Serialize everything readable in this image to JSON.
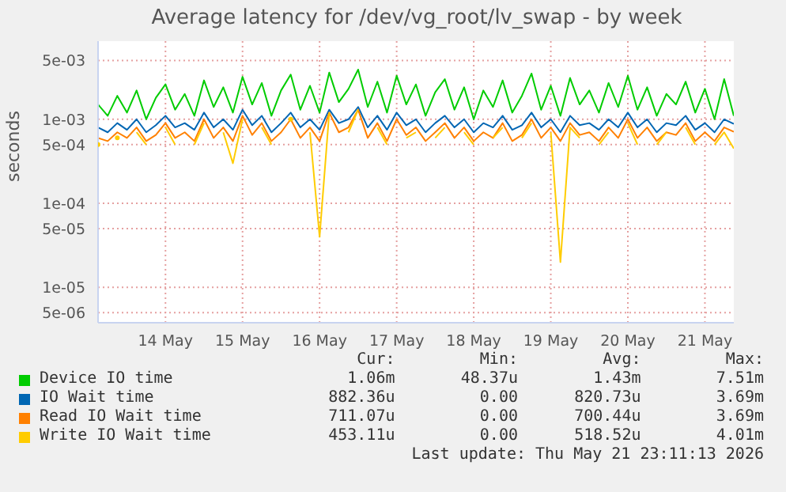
{
  "chart_data": {
    "type": "line",
    "title": "Average latency for /dev/vg_root/lv_swap - by week",
    "ylabel": "seconds",
    "log": "y",
    "grid": true,
    "legend": "bottom",
    "marker": "none",
    "line_style": "solid",
    "xlim": [
      "2026-05-13T15:00",
      "2026-05-21T21:00"
    ],
    "xticks": [
      {
        "value": "2026-05-14T12:00",
        "label": "14 May"
      },
      {
        "value": "2026-05-15T12:00",
        "label": "15 May"
      },
      {
        "value": "2026-05-16T12:00",
        "label": "16 May"
      },
      {
        "value": "2026-05-17T12:00",
        "label": "17 May"
      },
      {
        "value": "2026-05-18T12:00",
        "label": "18 May"
      },
      {
        "value": "2026-05-19T12:00",
        "label": "19 May"
      },
      {
        "value": "2026-05-20T12:00",
        "label": "20 May"
      },
      {
        "value": "2026-05-21T12:00",
        "label": "21 May"
      }
    ],
    "ylim": [
      3.8e-06,
      0.0085
    ],
    "yticks": [
      {
        "value": 5e-06,
        "label": "5e-06"
      },
      {
        "value": 1e-05,
        "label": "1e-05"
      },
      {
        "value": 5e-05,
        "label": "5e-05"
      },
      {
        "value": 0.0001,
        "label": "1e-04"
      },
      {
        "value": 0.0005,
        "label": "5e-04"
      },
      {
        "value": 0.001,
        "label": "1e-03"
      },
      {
        "value": 0.005,
        "label": "5e-03"
      }
    ],
    "x": [
      "2026-05-13T15:00",
      "2026-05-13T18:00",
      "2026-05-13T21:00",
      "2026-05-14T00:00",
      "2026-05-14T03:00",
      "2026-05-14T06:00",
      "2026-05-14T09:00",
      "2026-05-14T12:00",
      "2026-05-14T15:00",
      "2026-05-14T18:00",
      "2026-05-14T21:00",
      "2026-05-15T00:00",
      "2026-05-15T03:00",
      "2026-05-15T06:00",
      "2026-05-15T09:00",
      "2026-05-15T12:00",
      "2026-05-15T15:00",
      "2026-05-15T18:00",
      "2026-05-15T21:00",
      "2026-05-16T00:00",
      "2026-05-16T03:00",
      "2026-05-16T06:00",
      "2026-05-16T09:00",
      "2026-05-16T12:00",
      "2026-05-16T15:00",
      "2026-05-16T18:00",
      "2026-05-16T21:00",
      "2026-05-17T00:00",
      "2026-05-17T03:00",
      "2026-05-17T06:00",
      "2026-05-17T09:00",
      "2026-05-17T12:00",
      "2026-05-17T15:00",
      "2026-05-17T18:00",
      "2026-05-17T21:00",
      "2026-05-18T00:00",
      "2026-05-18T03:00",
      "2026-05-18T06:00",
      "2026-05-18T09:00",
      "2026-05-18T12:00",
      "2026-05-18T15:00",
      "2026-05-18T18:00",
      "2026-05-18T21:00",
      "2026-05-19T00:00",
      "2026-05-19T03:00",
      "2026-05-19T06:00",
      "2026-05-19T09:00",
      "2026-05-19T12:00",
      "2026-05-19T15:00",
      "2026-05-19T18:00",
      "2026-05-19T21:00",
      "2026-05-20T00:00",
      "2026-05-20T03:00",
      "2026-05-20T06:00",
      "2026-05-20T09:00",
      "2026-05-20T12:00",
      "2026-05-20T15:00",
      "2026-05-20T18:00",
      "2026-05-20T21:00",
      "2026-05-21T00:00",
      "2026-05-21T03:00",
      "2026-05-21T06:00",
      "2026-05-21T09:00",
      "2026-05-21T12:00",
      "2026-05-21T15:00",
      "2026-05-21T18:00",
      "2026-05-21T21:00"
    ],
    "series": [
      {
        "name": "Device IO time",
        "color": "#00cc00",
        "values": [
          0.0015,
          0.0011,
          0.0019,
          0.0012,
          0.0022,
          0.001,
          0.0018,
          0.0026,
          0.0013,
          0.002,
          0.0011,
          0.0029,
          0.0014,
          0.0024,
          0.0012,
          0.0032,
          0.0015,
          0.0027,
          0.0011,
          0.0022,
          0.0034,
          0.0013,
          0.0025,
          0.0012,
          0.0036,
          0.0016,
          0.0023,
          0.0039,
          0.0014,
          0.0028,
          0.0012,
          0.0033,
          0.0015,
          0.0026,
          0.0011,
          0.0021,
          0.003,
          0.0013,
          0.0024,
          0.001,
          0.0022,
          0.0014,
          0.0029,
          0.0012,
          0.0019,
          0.0035,
          0.0013,
          0.0025,
          0.0011,
          0.0031,
          0.0015,
          0.0022,
          0.0012,
          0.0027,
          0.0014,
          0.0033,
          0.0013,
          0.0024,
          0.0011,
          0.002,
          0.0015,
          0.0028,
          0.0012,
          0.0023,
          0.001,
          0.003,
          0.0011
        ]
      },
      {
        "name": "IO Wait time",
        "color": "#0066b3",
        "values": [
          0.0008,
          0.0007,
          0.0009,
          0.00075,
          0.001,
          0.0007,
          0.00085,
          0.0011,
          0.0008,
          0.0009,
          0.00075,
          0.0012,
          0.0008,
          0.001,
          0.00075,
          0.0013,
          0.00085,
          0.0011,
          0.0007,
          0.0009,
          0.0012,
          0.0008,
          0.001,
          0.00075,
          0.0013,
          0.0009,
          0.001,
          0.0014,
          0.0008,
          0.0011,
          0.00075,
          0.0012,
          0.00085,
          0.001,
          0.0007,
          0.0009,
          0.0011,
          0.0008,
          0.001,
          0.0007,
          0.0009,
          0.0008,
          0.0011,
          0.00075,
          0.00085,
          0.0012,
          0.0008,
          0.001,
          0.0007,
          0.0011,
          0.00085,
          0.0009,
          0.00075,
          0.001,
          0.0008,
          0.0012,
          0.0008,
          0.001,
          0.0007,
          0.0009,
          0.00085,
          0.0011,
          0.00075,
          0.0009,
          0.0007,
          0.001,
          0.00088
        ]
      },
      {
        "name": "Read IO Wait time",
        "color": "#ff8000",
        "values": [
          0.0006,
          0.00055,
          0.0007,
          0.0006,
          0.0008,
          0.00055,
          0.00065,
          0.0009,
          0.0006,
          0.0007,
          0.00055,
          0.001,
          0.0006,
          0.0008,
          0.00055,
          0.0011,
          0.00065,
          0.0009,
          0.00055,
          0.0007,
          0.001,
          0.0006,
          0.0008,
          0.00055,
          0.0012,
          0.0007,
          0.0008,
          0.0013,
          0.0006,
          0.0009,
          0.00055,
          0.001,
          0.00065,
          0.0008,
          0.00055,
          0.0007,
          0.0009,
          0.0006,
          0.0008,
          0.00055,
          0.0007,
          0.0006,
          0.0009,
          0.00055,
          0.00065,
          0.001,
          0.0006,
          0.0008,
          0.00055,
          0.0009,
          0.00065,
          0.0007,
          0.00055,
          0.0008,
          0.0006,
          0.001,
          0.0006,
          0.0008,
          0.00055,
          0.0007,
          0.00065,
          0.0009,
          0.00055,
          0.0007,
          0.00055,
          0.0008,
          0.00071
        ]
      },
      {
        "name": "Write IO Wait time",
        "color": "#ffcc00",
        "values": [
          0.0005,
          null,
          0.0006,
          null,
          0.0007,
          0.0005,
          null,
          0.0008,
          0.0005,
          null,
          0.0005,
          0.0009,
          null,
          0.0007,
          0.0003,
          0.001,
          null,
          0.0008,
          0.0005,
          null,
          0.001,
          null,
          0.0007,
          4e-05,
          0.0012,
          null,
          0.0007,
          0.0013,
          null,
          0.0008,
          0.0005,
          null,
          0.0006,
          0.0007,
          null,
          0.0006,
          0.0008,
          null,
          0.0007,
          0.0005,
          null,
          0.0006,
          0.0008,
          null,
          0.0006,
          0.0009,
          null,
          0.0007,
          2e-05,
          0.0008,
          0.0006,
          null,
          0.0005,
          0.0007,
          null,
          0.0009,
          0.0005,
          null,
          0.0005,
          0.0007,
          null,
          0.0008,
          0.0005,
          null,
          0.0005,
          0.0007,
          0.00045
        ]
      }
    ],
    "annotations": [
      "Cur:",
      "Min:",
      "Avg:",
      "Max:",
      "1.06m",
      "48.37u",
      "1.43m",
      "7.51m",
      "882.36u",
      "0.00",
      "820.73u",
      "3.69m",
      "711.07u",
      "0.00",
      "700.44u",
      "3.69m",
      "453.11u",
      "0.00",
      "518.52u",
      "4.01m",
      "Last update: Thu May 21 23:11:13 2026"
    ]
  }
}
